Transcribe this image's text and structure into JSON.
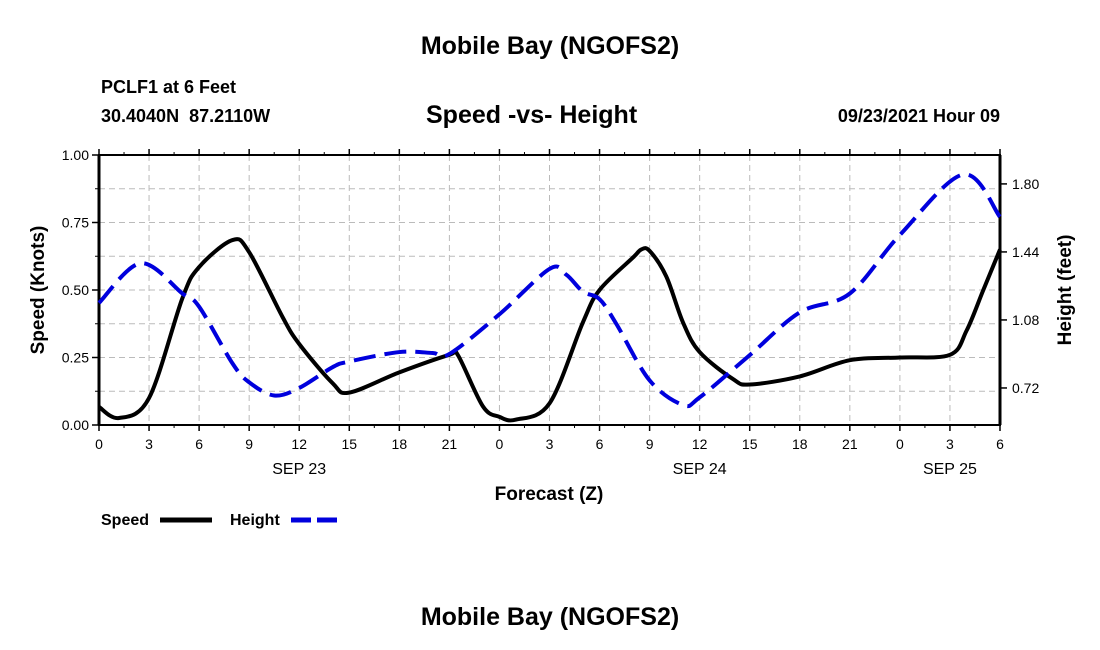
{
  "header": {
    "title": "Mobile Bay (NGOFS2)",
    "station": "PCLF1 at 6 Feet",
    "coords": "30.4040N  87.2110W",
    "subtitle": "Speed -vs- Height",
    "datetime": "09/23/2021 Hour 09",
    "footer_title": "Mobile Bay (NGOFS2)"
  },
  "chart_data": {
    "type": "line",
    "title": "Speed -vs- Height",
    "xlabel": "Forecast (Z)",
    "ylabel": "Speed (Knots)",
    "y2label": "Height (feet)",
    "xlim": [
      0,
      54
    ],
    "ylim": [
      0,
      1.0
    ],
    "y2lim": [
      0.524,
      1.953
    ],
    "grid": true,
    "x_ticks": [
      0,
      3,
      6,
      9,
      12,
      15,
      18,
      21,
      24,
      27,
      30,
      33,
      36,
      39,
      42,
      45,
      48,
      51,
      54
    ],
    "x_tick_labels": [
      "0",
      "3",
      "6",
      "9",
      "12",
      "15",
      "18",
      "21",
      "0",
      "3",
      "6",
      "9",
      "12",
      "15",
      "18",
      "21",
      "0",
      "3",
      "6"
    ],
    "date_labels": [
      {
        "hour": 12,
        "label": "SEP 23"
      },
      {
        "hour": 36,
        "label": "SEP 24"
      },
      {
        "hour": 51,
        "label": "SEP 25"
      }
    ],
    "y_ticks": [
      0,
      0.25,
      0.5,
      0.75,
      1.0
    ],
    "y_tick_labels": [
      "0.00",
      "0.25",
      "0.50",
      "0.75",
      "1.00"
    ],
    "y2_ticks": [
      0.72,
      1.08,
      1.44,
      1.8
    ],
    "y2_tick_labels": [
      "0.72",
      "1.08",
      "1.44",
      "1.80"
    ],
    "legend": "bottom-left",
    "series": [
      {
        "name": "Speed",
        "axis": "left",
        "color": "#000000",
        "dashed": false,
        "x": [
          0,
          1.2,
          3,
          5,
          6,
          8,
          9,
          11,
          12,
          14,
          15,
          18,
          21,
          21.5,
          23,
          24,
          25,
          27,
          29,
          30,
          32,
          32.5,
          33,
          34,
          35,
          36,
          38,
          39,
          42,
          45,
          48,
          51,
          52,
          53,
          54
        ],
        "y": [
          0.067,
          0.026,
          0.1,
          0.47,
          0.585,
          0.685,
          0.64,
          0.4,
          0.3,
          0.155,
          0.12,
          0.195,
          0.26,
          0.26,
          0.07,
          0.03,
          0.02,
          0.08,
          0.38,
          0.5,
          0.62,
          0.65,
          0.645,
          0.55,
          0.38,
          0.27,
          0.17,
          0.15,
          0.18,
          0.24,
          0.25,
          0.26,
          0.35,
          0.5,
          0.65
        ]
      },
      {
        "name": "Height",
        "axis": "right",
        "color": "#0000dd",
        "dashed": true,
        "x": [
          0,
          2.5,
          5,
          6,
          8,
          9,
          10.5,
          12,
          14,
          15,
          18,
          20,
          21,
          24,
          27,
          28,
          29,
          30,
          31,
          33,
          35,
          36,
          39,
          42,
          45,
          48,
          51.8,
          54
        ],
        "y": [
          1.17,
          1.38,
          1.22,
          1.15,
          0.85,
          0.75,
          0.68,
          0.72,
          0.83,
          0.86,
          0.91,
          0.905,
          0.9,
          1.11,
          1.35,
          1.32,
          1.23,
          1.19,
          1.06,
          0.76,
          0.63,
          0.67,
          0.894,
          1.12,
          1.22,
          1.53,
          1.85,
          1.625
        ]
      }
    ]
  }
}
